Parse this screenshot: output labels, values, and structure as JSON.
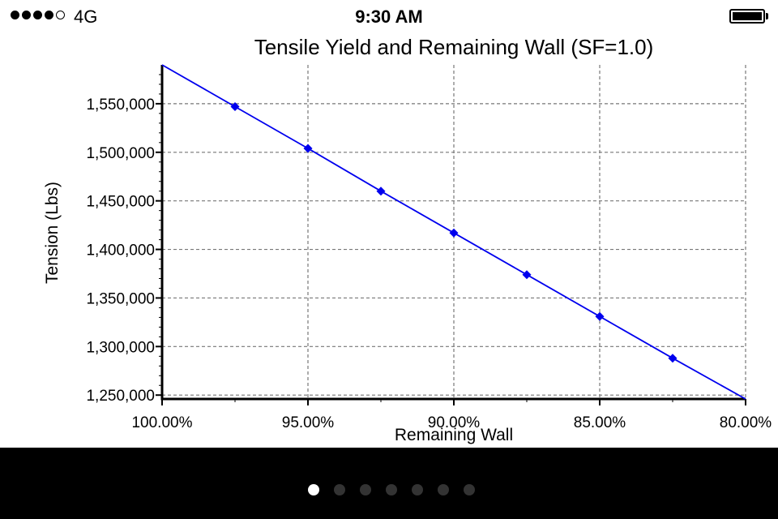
{
  "status_bar": {
    "signal_bars": 4,
    "signal_total": 5,
    "carrier": "4G",
    "time": "9:30 AM",
    "battery_level": 1.0
  },
  "chart_data": {
    "type": "line",
    "title": "Tensile Yield and Remaining Wall (SF=1.0)",
    "xlabel": "Remaining Wall",
    "ylabel": "Tension (Lbs)",
    "x_ticks": [
      {
        "value": 100.0,
        "label": "100.00%"
      },
      {
        "value": 95.0,
        "label": "95.00%"
      },
      {
        "value": 90.0,
        "label": "90.00%"
      },
      {
        "value": 85.0,
        "label": "85.00%"
      },
      {
        "value": 80.0,
        "label": "80.00%"
      }
    ],
    "y_ticks": [
      {
        "value": 1250000,
        "label": "1,250,000"
      },
      {
        "value": 1300000,
        "label": "1,300,000"
      },
      {
        "value": 1350000,
        "label": "1,350,000"
      },
      {
        "value": 1400000,
        "label": "1,400,000"
      },
      {
        "value": 1450000,
        "label": "1,450,000"
      },
      {
        "value": 1500000,
        "label": "1,500,000"
      },
      {
        "value": 1550000,
        "label": "1,550,000"
      }
    ],
    "xlim": [
      100.0,
      80.0
    ],
    "ylim": [
      1246000,
      1590000
    ],
    "x_reversed": true,
    "grid": true,
    "series": [
      {
        "color": "#0000ee",
        "marker": "diamond",
        "points": [
          {
            "x": 100.0,
            "y": 1590000,
            "marker": false
          },
          {
            "x": 97.5,
            "y": 1547000,
            "marker": true
          },
          {
            "x": 95.0,
            "y": 1504000,
            "marker": true
          },
          {
            "x": 92.5,
            "y": 1460000,
            "marker": true
          },
          {
            "x": 90.0,
            "y": 1417000,
            "marker": true
          },
          {
            "x": 87.5,
            "y": 1374000,
            "marker": true
          },
          {
            "x": 85.0,
            "y": 1331000,
            "marker": true
          },
          {
            "x": 82.5,
            "y": 1288000,
            "marker": true
          },
          {
            "x": 80.0,
            "y": 1246000,
            "marker": false
          }
        ]
      }
    ]
  },
  "pager": {
    "count": 7,
    "active_index": 0
  }
}
